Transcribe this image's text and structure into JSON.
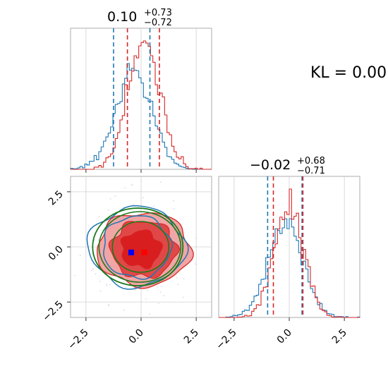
{
  "chart_data": {
    "type": "corner",
    "annotation": "KL = 0.00",
    "colors": {
      "series_a": "#1f77b4",
      "series_b": "#d62728",
      "contour_green": "#1a7a1a",
      "marker_blue": "#0000ff",
      "marker_red": "#ff0000"
    },
    "params": [
      {
        "median": "0.10",
        "upper": "+0.73",
        "lower": "−0.72",
        "series_a_quantiles": [
          -1.25,
          0.4
        ],
        "series_b_quantiles": [
          -0.62,
          0.83
        ]
      },
      {
        "median": "−0.02",
        "upper": "+0.68",
        "lower": "−0.71",
        "series_a_quantiles": [
          -0.98,
          0.58
        ],
        "series_b_quantiles": [
          -0.72,
          0.62
        ]
      }
    ],
    "xlim": [
      -3.2,
      3.2
    ],
    "ylim": [
      -3.2,
      3.2
    ],
    "xticks": [
      "−2.5",
      "0.0",
      "2.5"
    ],
    "yticks": [
      "−2.5",
      "0.0",
      "2.5"
    ],
    "tick_values": [
      -2.5,
      0.0,
      2.5
    ],
    "marker_blue": [
      -0.45,
      -0.25
    ],
    "marker_red": [
      0.15,
      -0.25
    ],
    "grid": true
  }
}
